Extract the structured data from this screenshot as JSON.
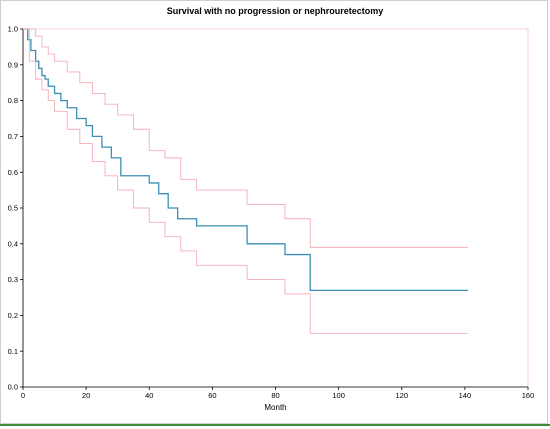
{
  "chart_data": {
    "type": "line",
    "title": "Survival  with no progression or nephrouretectomy",
    "xlabel": "Month",
    "ylabel": "",
    "xlim": [
      0,
      160
    ],
    "ylim": [
      0.0,
      1.0
    ],
    "x_ticks": [
      "0",
      "20",
      "40",
      "60",
      "80",
      "100",
      "120",
      "140",
      "160"
    ],
    "y_ticks": [
      "0.0",
      "0.1",
      "0.2",
      "0.3",
      "0.4",
      "0.5",
      "0.6",
      "0.7",
      "0.8",
      "0.9",
      "1.0"
    ],
    "grid": false,
    "colors": {
      "survival": "#3b8fb5",
      "ci": "#f2aeb6",
      "axis": "#000000",
      "frame": "#f5c6cc"
    },
    "series": [
      {
        "role": "estimate",
        "step": true,
        "x": [
          0,
          1.5,
          2.5,
          4,
          5,
          6,
          7,
          8,
          10,
          12,
          14,
          17,
          20,
          22,
          25,
          28,
          31,
          36,
          40,
          43,
          46,
          49,
          55,
          62,
          71,
          78,
          83,
          91,
          141
        ],
        "y": [
          1.0,
          0.97,
          0.94,
          0.91,
          0.89,
          0.87,
          0.86,
          0.84,
          0.82,
          0.8,
          0.78,
          0.75,
          0.73,
          0.7,
          0.67,
          0.64,
          0.59,
          0.59,
          0.57,
          0.54,
          0.5,
          0.47,
          0.45,
          0.45,
          0.4,
          0.4,
          0.37,
          0.27,
          0.27
        ]
      },
      {
        "role": "upper",
        "step": true,
        "x": [
          0,
          2,
          4,
          6,
          8,
          10,
          14,
          18,
          22,
          26,
          30,
          35,
          40,
          45,
          50,
          55,
          62,
          71,
          78,
          83,
          91,
          141
        ],
        "y": [
          1.0,
          1.0,
          0.98,
          0.95,
          0.93,
          0.91,
          0.88,
          0.85,
          0.82,
          0.79,
          0.76,
          0.72,
          0.66,
          0.64,
          0.58,
          0.55,
          0.55,
          0.51,
          0.51,
          0.47,
          0.39,
          0.39
        ]
      },
      {
        "role": "lower",
        "step": true,
        "x": [
          0,
          2,
          4,
          6,
          8,
          10,
          14,
          18,
          22,
          26,
          30,
          35,
          40,
          45,
          50,
          55,
          62,
          71,
          78,
          83,
          91,
          141
        ],
        "y": [
          1.0,
          0.91,
          0.86,
          0.83,
          0.8,
          0.77,
          0.72,
          0.68,
          0.63,
          0.59,
          0.55,
          0.5,
          0.46,
          0.42,
          0.38,
          0.34,
          0.34,
          0.3,
          0.3,
          0.26,
          0.15,
          0.15
        ]
      }
    ]
  }
}
